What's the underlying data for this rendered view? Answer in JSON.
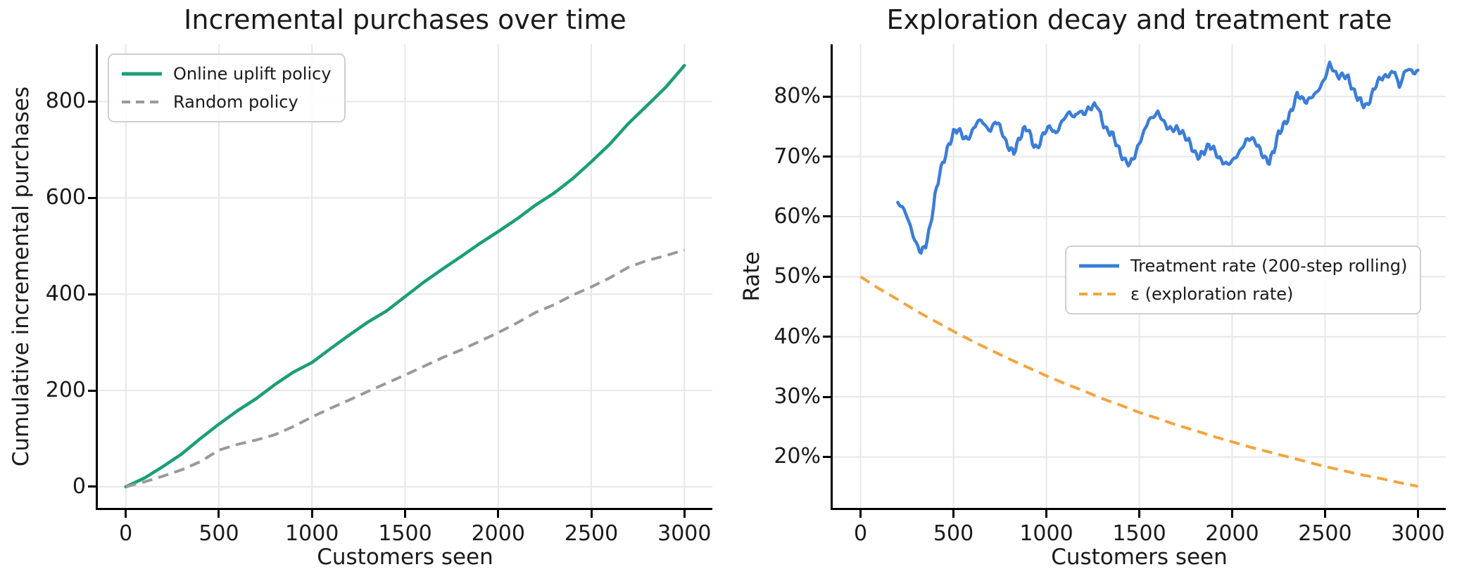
{
  "figure": {
    "background": "#ffffff",
    "text_color": "#1a1a1a",
    "spine_color": "#000000"
  },
  "chart_data": [
    {
      "type": "line",
      "title": "Incremental purchases over time",
      "xlabel": "Customers seen",
      "ylabel": "Cumulative incremental purchases",
      "xlim": [
        -150,
        3150
      ],
      "ylim": [
        -44,
        919
      ],
      "xticks": [
        0,
        500,
        1000,
        1500,
        2000,
        2500,
        3000
      ],
      "xtick_labels": [
        "0",
        "500",
        "1000",
        "1500",
        "2000",
        "2500",
        "3000"
      ],
      "yticks": [
        0,
        200,
        400,
        600,
        800
      ],
      "ytick_labels": [
        "0",
        "200",
        "400",
        "600",
        "800"
      ],
      "grid": true,
      "grid_color": "#e7e7e7",
      "legend_position": "upper-left",
      "series": [
        {
          "name": "Online uplift policy",
          "color": "#1b9e77",
          "style": "solid",
          "points": [
            [
              0,
              0
            ],
            [
              100,
              18
            ],
            [
              200,
              42
            ],
            [
              300,
              68
            ],
            [
              400,
              100
            ],
            [
              500,
              130
            ],
            [
              600,
              158
            ],
            [
              700,
              183
            ],
            [
              800,
              212
            ],
            [
              900,
              238
            ],
            [
              1000,
              258
            ],
            [
              1100,
              287
            ],
            [
              1200,
              315
            ],
            [
              1300,
              342
            ],
            [
              1400,
              365
            ],
            [
              1500,
              395
            ],
            [
              1600,
              425
            ],
            [
              1700,
              452
            ],
            [
              1800,
              478
            ],
            [
              1900,
              505
            ],
            [
              2000,
              530
            ],
            [
              2100,
              556
            ],
            [
              2200,
              585
            ],
            [
              2300,
              610
            ],
            [
              2400,
              640
            ],
            [
              2500,
              675
            ],
            [
              2600,
              712
            ],
            [
              2700,
              755
            ],
            [
              2800,
              792
            ],
            [
              2900,
              830
            ],
            [
              3000,
              875
            ]
          ]
        },
        {
          "name": "Random policy",
          "color": "#999999",
          "style": "dashed",
          "points": [
            [
              0,
              0
            ],
            [
              100,
              10
            ],
            [
              200,
              22
            ],
            [
              300,
              35
            ],
            [
              400,
              52
            ],
            [
              500,
              76
            ],
            [
              600,
              88
            ],
            [
              700,
              97
            ],
            [
              800,
              108
            ],
            [
              900,
              125
            ],
            [
              1000,
              145
            ],
            [
              1100,
              163
            ],
            [
              1200,
              180
            ],
            [
              1300,
              198
            ],
            [
              1400,
              215
            ],
            [
              1500,
              232
            ],
            [
              1600,
              250
            ],
            [
              1700,
              268
            ],
            [
              1800,
              284
            ],
            [
              1900,
              302
            ],
            [
              2000,
              320
            ],
            [
              2100,
              340
            ],
            [
              2200,
              362
            ],
            [
              2300,
              378
            ],
            [
              2400,
              398
            ],
            [
              2500,
              415
            ],
            [
              2600,
              434
            ],
            [
              2700,
              456
            ],
            [
              2800,
              470
            ],
            [
              2900,
              480
            ],
            [
              3000,
              492
            ]
          ]
        }
      ]
    },
    {
      "type": "line",
      "title": "Exploration decay and treatment rate",
      "xlabel": "Customers seen",
      "ylabel": "Rate",
      "xlim": [
        -150,
        3150
      ],
      "ylim": [
        11.5,
        88.7
      ],
      "xticks": [
        0,
        500,
        1000,
        1500,
        2000,
        2500,
        3000
      ],
      "xtick_labels": [
        "0",
        "500",
        "1000",
        "1500",
        "2000",
        "2500",
        "3000"
      ],
      "yticks": [
        20,
        30,
        40,
        50,
        60,
        70,
        80
      ],
      "ytick_labels": [
        "20%",
        "30%",
        "40%",
        "50%",
        "60%",
        "70%",
        "80%"
      ],
      "grid": true,
      "grid_color": "#e7e7e7",
      "legend_position": "center-right",
      "series": [
        {
          "name": "Treatment rate (200-step rolling)",
          "color": "#3b7dd8",
          "style": "solid",
          "noisy": true,
          "points": [
            [
              200,
              62.3
            ],
            [
              225,
              61.6
            ],
            [
              250,
              60.1
            ],
            [
              275,
              57.6
            ],
            [
              300,
              55.4
            ],
            [
              325,
              54.1
            ],
            [
              350,
              55.2
            ],
            [
              375,
              58.4
            ],
            [
              400,
              63.3
            ],
            [
              425,
              67.2
            ],
            [
              450,
              69.6
            ],
            [
              475,
              71.9
            ],
            [
              500,
              74.0
            ],
            [
              525,
              74.6
            ],
            [
              550,
              73.4
            ],
            [
              575,
              72.8
            ],
            [
              600,
              74.1
            ],
            [
              625,
              75.7
            ],
            [
              650,
              76.1
            ],
            [
              675,
              74.9
            ],
            [
              700,
              74.3
            ],
            [
              725,
              75.9
            ],
            [
              750,
              75.1
            ],
            [
              775,
              72.9
            ],
            [
              800,
              71.4
            ],
            [
              825,
              70.7
            ],
            [
              850,
              72.6
            ],
            [
              875,
              74.4
            ],
            [
              900,
              74.8
            ],
            [
              925,
              72.4
            ],
            [
              950,
              71.2
            ],
            [
              975,
              73.1
            ],
            [
              1000,
              74.6
            ],
            [
              1025,
              74.9
            ],
            [
              1050,
              73.7
            ],
            [
              1075,
              75.3
            ],
            [
              1100,
              76.6
            ],
            [
              1125,
              77.4
            ],
            [
              1150,
              76.5
            ],
            [
              1175,
              77.6
            ],
            [
              1200,
              77.1
            ],
            [
              1225,
              77.9
            ],
            [
              1250,
              78.4
            ],
            [
              1275,
              78.6
            ],
            [
              1300,
              75.9
            ],
            [
              1325,
              74.3
            ],
            [
              1350,
              74.0
            ],
            [
              1375,
              72.4
            ],
            [
              1400,
              70.4
            ],
            [
              1425,
              69.2
            ],
            [
              1450,
              68.8
            ],
            [
              1475,
              70.1
            ],
            [
              1500,
              72.2
            ],
            [
              1525,
              74.1
            ],
            [
              1550,
              76.1
            ],
            [
              1575,
              76.6
            ],
            [
              1600,
              77.4
            ],
            [
              1625,
              76.1
            ],
            [
              1650,
              74.9
            ],
            [
              1675,
              74.5
            ],
            [
              1700,
              74.7
            ],
            [
              1725,
              74.1
            ],
            [
              1750,
              73.3
            ],
            [
              1775,
              72.1
            ],
            [
              1800,
              70.4
            ],
            [
              1825,
              70.0
            ],
            [
              1850,
              70.9
            ],
            [
              1875,
              71.9
            ],
            [
              1900,
              71.3
            ],
            [
              1925,
              69.9
            ],
            [
              1950,
              69.1
            ],
            [
              1975,
              68.7
            ],
            [
              2000,
              69.3
            ],
            [
              2025,
              70.1
            ],
            [
              2050,
              71.3
            ],
            [
              2075,
              72.7
            ],
            [
              2100,
              73.1
            ],
            [
              2125,
              72.5
            ],
            [
              2150,
              71.1
            ],
            [
              2175,
              69.7
            ],
            [
              2200,
              69.1
            ],
            [
              2225,
              71.1
            ],
            [
              2250,
              73.9
            ],
            [
              2275,
              75.1
            ],
            [
              2300,
              76.3
            ],
            [
              2325,
              78.1
            ],
            [
              2350,
              80.4
            ],
            [
              2375,
              79.7
            ],
            [
              2400,
              79.1
            ],
            [
              2425,
              79.9
            ],
            [
              2450,
              80.5
            ],
            [
              2475,
              81.6
            ],
            [
              2500,
              83.1
            ],
            [
              2525,
              85.5
            ],
            [
              2550,
              84.1
            ],
            [
              2575,
              83.3
            ],
            [
              2600,
              83.6
            ],
            [
              2625,
              83.1
            ],
            [
              2650,
              81.1
            ],
            [
              2675,
              79.9
            ],
            [
              2700,
              78.9
            ],
            [
              2725,
              78.3
            ],
            [
              2750,
              80.1
            ],
            [
              2775,
              82.1
            ],
            [
              2800,
              83.1
            ],
            [
              2825,
              83.3
            ],
            [
              2850,
              83.7
            ],
            [
              2875,
              84.3
            ],
            [
              2900,
              81.5
            ],
            [
              2925,
              83.9
            ],
            [
              2950,
              84.7
            ],
            [
              2975,
              83.9
            ],
            [
              3000,
              84.4
            ]
          ]
        },
        {
          "name": "ε (exploration rate)",
          "color": "#f2a43d",
          "style": "dashed",
          "points": [
            [
              0,
              50.0
            ],
            [
              100,
              48.0
            ],
            [
              200,
              46.2
            ],
            [
              300,
              44.3
            ],
            [
              400,
              42.6
            ],
            [
              500,
              40.9
            ],
            [
              600,
              39.3
            ],
            [
              700,
              37.8
            ],
            [
              800,
              36.3
            ],
            [
              900,
              34.9
            ],
            [
              1000,
              33.5
            ],
            [
              1100,
              32.2
            ],
            [
              1200,
              31.0
            ],
            [
              1300,
              29.7
            ],
            [
              1400,
              28.6
            ],
            [
              1500,
              27.4
            ],
            [
              1600,
              26.4
            ],
            [
              1700,
              25.3
            ],
            [
              1800,
              24.4
            ],
            [
              1900,
              23.4
            ],
            [
              2000,
              22.5
            ],
            [
              2100,
              21.6
            ],
            [
              2200,
              20.8
            ],
            [
              2300,
              20.0
            ],
            [
              2400,
              19.2
            ],
            [
              2500,
              18.4
            ],
            [
              2600,
              17.7
            ],
            [
              2700,
              17.0
            ],
            [
              2800,
              16.4
            ],
            [
              2900,
              15.7
            ],
            [
              3000,
              15.1
            ]
          ]
        }
      ]
    }
  ]
}
